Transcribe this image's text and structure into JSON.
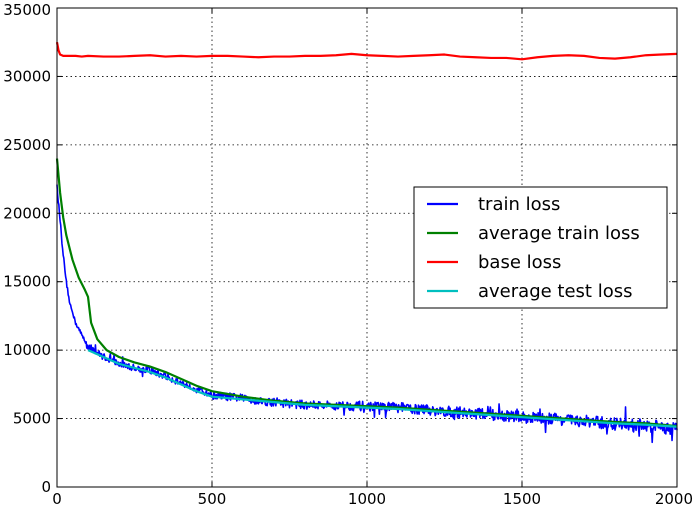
{
  "chart_data": {
    "type": "line",
    "title": "",
    "xlabel": "",
    "ylabel": "",
    "xlim": [
      0,
      2000
    ],
    "ylim": [
      0,
      35000
    ],
    "xticks": [
      "0",
      "500",
      "1000",
      "1500",
      "2000"
    ],
    "yticks": [
      "0",
      "5000",
      "10000",
      "15000",
      "20000",
      "25000",
      "30000",
      "35000"
    ],
    "grid": true,
    "legend_position": "center-right",
    "series": [
      {
        "name": "train loss",
        "color": "#0000ff",
        "noisy": true,
        "x": [
          0,
          10,
          20,
          30,
          40,
          50,
          60,
          80,
          100,
          130,
          160,
          200,
          250,
          300,
          350,
          400,
          450,
          500,
          550,
          600,
          650,
          700,
          800,
          900,
          1000,
          1100,
          1200,
          1300,
          1400,
          1500,
          1600,
          1700,
          1800,
          1900,
          2000
        ],
        "y": [
          22000,
          19500,
          17000,
          15000,
          13600,
          12700,
          12000,
          11100,
          10300,
          9800,
          9400,
          9000,
          8700,
          8500,
          8100,
          7600,
          7200,
          6700,
          6600,
          6500,
          6300,
          6200,
          6000,
          5950,
          5900,
          5800,
          5600,
          5450,
          5300,
          5100,
          5000,
          4800,
          4600,
          4500,
          4200
        ]
      },
      {
        "name": "average train loss",
        "color": "#008000",
        "noisy": false,
        "x": [
          0,
          10,
          20,
          30,
          50,
          70,
          90,
          100,
          110,
          130,
          160,
          200,
          250,
          300,
          350,
          400,
          450,
          500,
          550,
          600,
          700,
          800,
          900,
          1000,
          1100,
          1200,
          1300,
          1400,
          1500,
          1600,
          1700,
          1800,
          1900,
          2000
        ],
        "y": [
          24000,
          21500,
          19700,
          18400,
          16600,
          15300,
          14400,
          13900,
          12000,
          10800,
          10000,
          9500,
          9100,
          8800,
          8400,
          7900,
          7400,
          7000,
          6800,
          6600,
          6300,
          6100,
          6000,
          5900,
          5800,
          5650,
          5500,
          5350,
          5200,
          5050,
          4900,
          4750,
          4650,
          4450
        ]
      },
      {
        "name": "base loss",
        "color": "#ff0000",
        "noisy": false,
        "x": [
          0,
          5,
          10,
          20,
          40,
          60,
          80,
          100,
          150,
          200,
          250,
          300,
          350,
          400,
          450,
          500,
          550,
          600,
          650,
          700,
          750,
          800,
          850,
          900,
          950,
          1000,
          1050,
          1100,
          1150,
          1200,
          1250,
          1300,
          1350,
          1400,
          1450,
          1500,
          1550,
          1600,
          1650,
          1700,
          1750,
          1800,
          1850,
          1900,
          1950,
          2000
        ],
        "y": [
          32500,
          31900,
          31600,
          31500,
          31500,
          31500,
          31450,
          31500,
          31450,
          31450,
          31500,
          31550,
          31450,
          31500,
          31450,
          31500,
          31500,
          31450,
          31400,
          31450,
          31450,
          31500,
          31500,
          31550,
          31650,
          31550,
          31500,
          31450,
          31500,
          31550,
          31600,
          31450,
          31400,
          31350,
          31350,
          31250,
          31400,
          31500,
          31550,
          31500,
          31350,
          31300,
          31400,
          31550,
          31600,
          31650
        ]
      },
      {
        "name": "average test loss",
        "color": "#00bfbf",
        "noisy": false,
        "x": [
          100,
          150,
          200,
          250,
          300,
          350,
          400,
          450,
          500,
          550,
          600,
          700,
          800,
          900,
          1000,
          1100,
          1200,
          1300,
          1400,
          1500,
          1600,
          1700,
          1800,
          1900,
          2000
        ],
        "y": [
          10000,
          9500,
          9000,
          8700,
          8400,
          8000,
          7500,
          7000,
          6600,
          6500,
          6400,
          6200,
          6000,
          5900,
          5800,
          5700,
          5550,
          5400,
          5250,
          5100,
          4950,
          4800,
          4650,
          4550,
          4400
        ]
      }
    ]
  }
}
